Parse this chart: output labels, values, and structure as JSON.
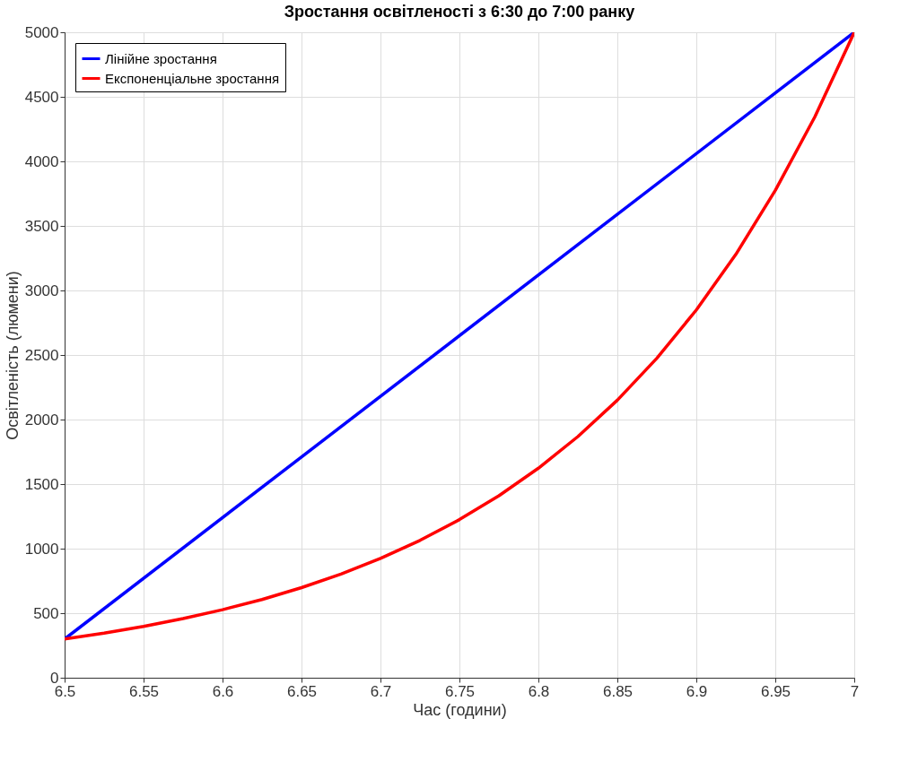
{
  "chart_data": {
    "type": "line",
    "title": "Зростання освітленості з 6:30 до 7:00 ранку",
    "xlabel": "Час (години)",
    "ylabel": "Освітленість (люмени)",
    "x": [
      6.5,
      6.525,
      6.55,
      6.575,
      6.6,
      6.625,
      6.65,
      6.675,
      6.7,
      6.725,
      6.75,
      6.775,
      6.8,
      6.825,
      6.85,
      6.875,
      6.9,
      6.925,
      6.95,
      6.975,
      7.0
    ],
    "series": [
      {
        "name": "Лінійне зростання",
        "color": "#0000ff",
        "x": [
          6.5,
          7.0
        ],
        "values": [
          300,
          5000
        ]
      },
      {
        "name": "Експоненціальне зростання",
        "color": "#ff0000",
        "values": [
          300,
          345,
          397,
          458,
          527,
          606,
          698,
          803,
          925,
          1064,
          1225,
          1410,
          1623,
          1868,
          2150,
          2475,
          2849,
          3279,
          3775,
          4344,
          5000
        ]
      }
    ],
    "xlim": [
      6.5,
      7.0
    ],
    "xticks": [
      6.5,
      6.55,
      6.6,
      6.65,
      6.7,
      6.75,
      6.8,
      6.85,
      6.9,
      6.95,
      7
    ],
    "ylim": [
      0,
      5000
    ],
    "yticks": [
      0,
      500,
      1000,
      1500,
      2000,
      2500,
      3000,
      3500,
      4000,
      4500,
      5000
    ],
    "grid": true,
    "legend": "top left",
    "marker": "none",
    "line_style": "solid"
  }
}
